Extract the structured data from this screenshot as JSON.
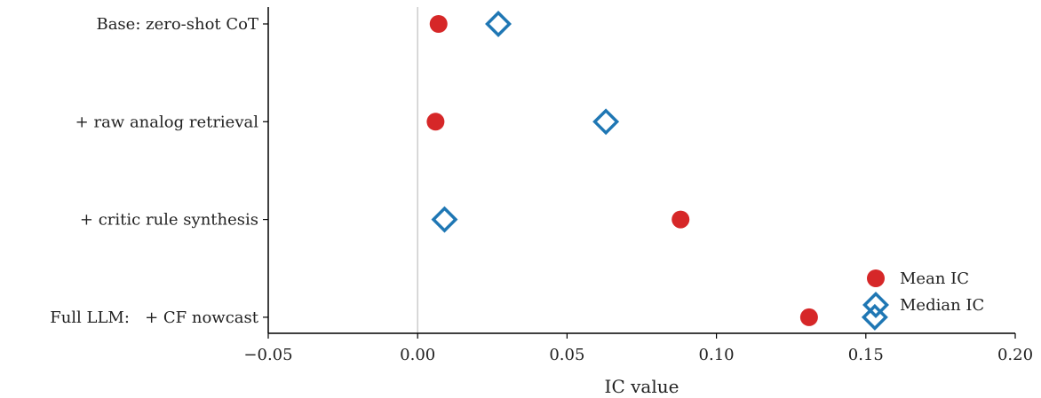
{
  "chart_data": {
    "type": "scatter",
    "orientation": "horizontal",
    "categories": [
      "Base: zero-shot CoT",
      "+ raw analog retrieval",
      "+ critic rule synthesis",
      "Full LLM:   + CF nowcast"
    ],
    "series": [
      {
        "name": "Mean IC",
        "marker": "circle",
        "color": "#d62728",
        "values": [
          0.007,
          0.006,
          0.088,
          0.131
        ]
      },
      {
        "name": "Median IC",
        "marker": "diamond",
        "color": "#1f77b4",
        "values": [
          0.027,
          0.063,
          0.009,
          0.153
        ]
      }
    ],
    "xlabel": "IC value",
    "ylabel": "",
    "xlim": [
      -0.05,
      0.2
    ],
    "x_ticks": [
      -0.05,
      0.0,
      0.05,
      0.1,
      0.15,
      0.2
    ],
    "x_tick_labels": [
      "−0.05",
      "0.00",
      "0.05",
      "0.10",
      "0.15",
      "0.20"
    ],
    "reference_line": {
      "x": 0,
      "color": "#cccccc"
    },
    "grid": false,
    "legend": {
      "placement": "lower-right",
      "entries": [
        "Mean IC",
        "Median IC"
      ]
    }
  }
}
